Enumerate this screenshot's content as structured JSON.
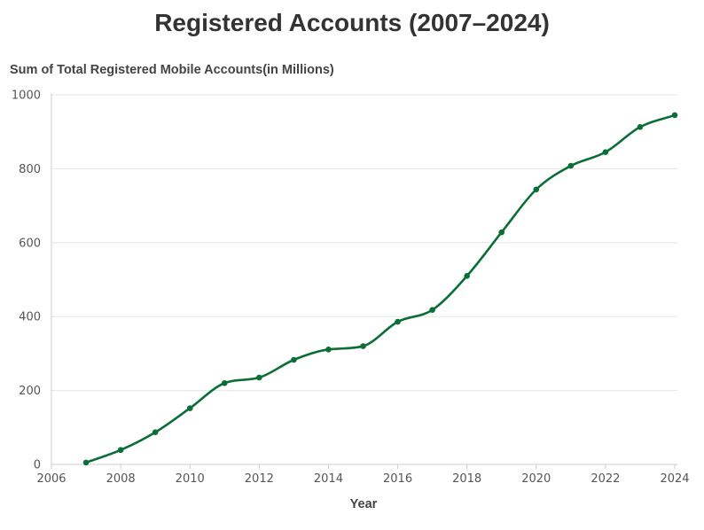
{
  "chart_data": {
    "type": "line",
    "title": "Registered Accounts (2007–2024)",
    "ylabel": "Sum of Total Registered Mobile Accounts(in Millions)",
    "xlabel": "Year",
    "xlim": [
      2006,
      2024
    ],
    "ylim": [
      0,
      1000
    ],
    "x_ticks": [
      "2006",
      "2008",
      "2010",
      "2012",
      "2014",
      "2016",
      "2018",
      "2020",
      "2022",
      "2024"
    ],
    "y_ticks": [
      "0",
      "200",
      "400",
      "600",
      "800",
      "1000"
    ],
    "grid": "horizontal",
    "series": [
      {
        "x": [
          2007,
          2008,
          2009,
          2010,
          2011,
          2012,
          2013,
          2014,
          2015,
          2016,
          2017,
          2018,
          2019,
          2020,
          2021,
          2022,
          2023,
          2024
        ],
        "values": [
          5,
          39,
          87,
          152,
          220,
          235,
          283,
          311,
          320,
          386,
          418,
          510,
          628,
          744,
          808,
          845,
          913,
          945
        ],
        "color": "#0b6e37"
      }
    ]
  }
}
